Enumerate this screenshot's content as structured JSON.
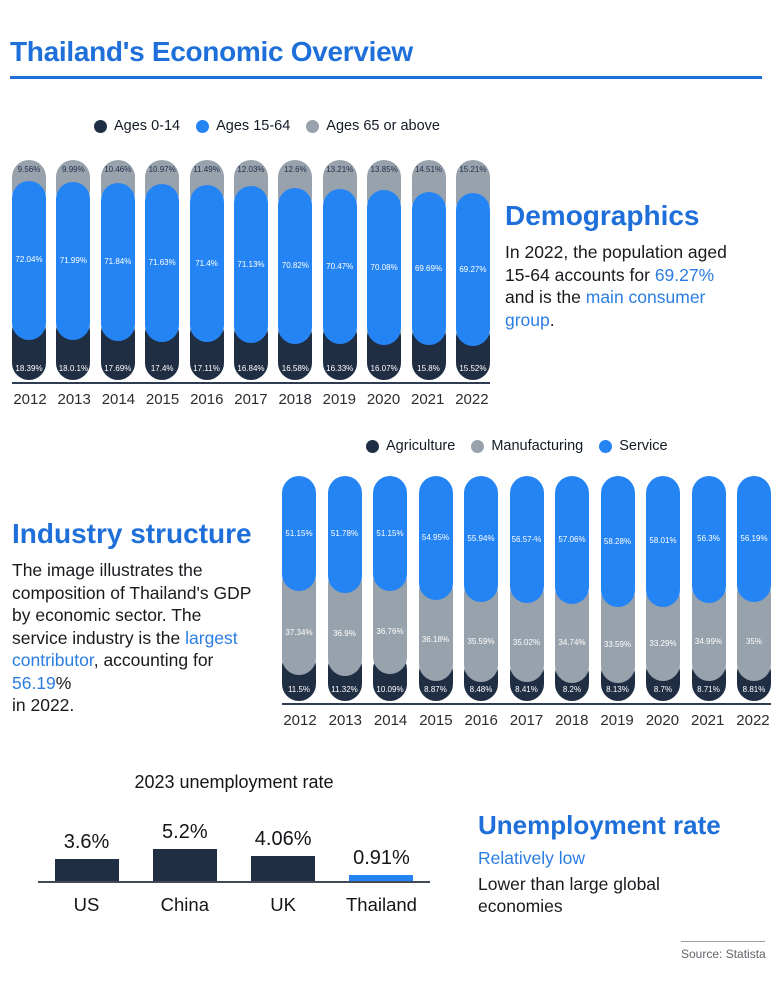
{
  "header": {
    "title": "Thailand's Economic Overview"
  },
  "colors": {
    "accent": "#1e6fd9",
    "blue": "#2584f4",
    "navy": "#202e44",
    "gray": "#98a2ac"
  },
  "sections": {
    "demographics": {
      "heading": "Demographics",
      "legend": [
        {
          "label": "Ages 0-14",
          "color": "navy"
        },
        {
          "label": "Ages 15-64",
          "color": "blue"
        },
        {
          "label": "Ages 65 or above",
          "color": "gray"
        }
      ],
      "para": {
        "p1": "In 2022, the population aged 15-64 accounts for ",
        "p2": "69.27%",
        "p3": " and is the ",
        "p4": "main consumer group",
        "p5": "."
      }
    },
    "industry": {
      "heading": "Industry structure",
      "legend": [
        {
          "label": "Agriculture",
          "color": "navy"
        },
        {
          "label": "Manufacturing",
          "color": "gray"
        },
        {
          "label": "Service",
          "color": "blue"
        }
      ],
      "para": {
        "p1": "The image illustrates the composition of Thailand's GDP by economic sector. The service industry is the ",
        "p2": "largest contributor",
        "p3": ", accounting for ",
        "p4": "56.19",
        "p5": "%",
        "p6": "in 2022."
      }
    },
    "unemployment": {
      "heading": "Unemployment rate",
      "sub": "Relatively low",
      "desc": "Lower than large global economies"
    }
  },
  "footer": {
    "source": "Source: Statista"
  },
  "chart_data": [
    {
      "id": "demographics",
      "type": "stacked-bar",
      "title": "",
      "categories": [
        "2012",
        "2013",
        "2014",
        "2015",
        "2016",
        "2017",
        "2018",
        "2019",
        "2020",
        "2021",
        "2022"
      ],
      "series": [
        {
          "name": "Ages 65 or above",
          "slot": "top",
          "color": "gray",
          "z": 1,
          "label_dark": true,
          "values": [
            9.56,
            9.99,
            10.46,
            10.97,
            11.49,
            12.03,
            12.6,
            13.21,
            13.85,
            14.51,
            15.21
          ],
          "labels": [
            "9.56%",
            "9.99%",
            "10.46%",
            "10.97%",
            "11.49%",
            "12.03%",
            "12.6%",
            "13.21%",
            "13.85%",
            "14.51%",
            "15.21%"
          ]
        },
        {
          "name": "Ages 15-64",
          "slot": "middle",
          "color": "blue",
          "z": 3,
          "label_dark": false,
          "values": [
            72.04,
            71.99,
            71.84,
            71.63,
            71.4,
            71.13,
            70.82,
            70.47,
            70.08,
            69.69,
            69.27
          ],
          "labels": [
            "72.04%",
            "71.99%",
            "71.84%",
            "71.63%",
            "71.4%",
            "71.13%",
            "70.82%",
            "70.47%",
            "70.08%",
            "69.69%",
            "69.27%"
          ]
        },
        {
          "name": "Ages 0-14",
          "slot": "bottom",
          "color": "navy",
          "z": 1,
          "label_dark": false,
          "values": [
            18.39,
            18.01,
            17.69,
            17.4,
            17.11,
            16.84,
            16.58,
            16.33,
            16.07,
            15.8,
            15.52
          ],
          "labels": [
            "18.39%",
            "18.0.1%",
            "17.69%",
            "17.4%",
            "17.11%",
            "16.84%",
            "16.58%",
            "16.33%",
            "16.07%",
            "15.8%",
            "15.52%"
          ]
        }
      ],
      "legend_position": "top",
      "grid": false
    },
    {
      "id": "industry",
      "type": "stacked-bar",
      "title": "",
      "categories": [
        "2012",
        "2013",
        "2014",
        "2015",
        "2016",
        "2017",
        "2018",
        "2019",
        "2020",
        "2021",
        "2022"
      ],
      "series": [
        {
          "name": "Service",
          "slot": "top",
          "color": "blue",
          "z": 3,
          "label_dark": false,
          "values": [
            51.15,
            51.78,
            51.15,
            54.95,
            55.94,
            56.57,
            57.06,
            58.28,
            58.01,
            56.3,
            56.19
          ],
          "labels": [
            "51.15%",
            "51.78%",
            "51.15%",
            "54.95%",
            "55.94%",
            "56.57-%",
            "57.06%",
            "58.28%",
            "58.01%",
            "56.3%",
            "56.19%"
          ]
        },
        {
          "name": "Manufacturing",
          "slot": "middle",
          "color": "gray",
          "z": 2,
          "label_dark": false,
          "values": [
            37.34,
            36.9,
            36.76,
            36.18,
            35.59,
            35.02,
            34.74,
            33.59,
            33.29,
            34.99,
            35
          ],
          "labels": [
            "37.34%",
            "36.9%",
            "36.76%",
            "36.18%",
            "35.59%",
            "35.02%",
            "34.74%",
            "33.59%",
            "33.29%",
            "34.99%",
            "35%"
          ]
        },
        {
          "name": "Agriculture",
          "slot": "bottom",
          "color": "navy",
          "z": 1,
          "label_dark": false,
          "values": [
            11.5,
            11.32,
            10.09,
            8.87,
            8.48,
            8.41,
            8.2,
            8.13,
            8.7,
            8.71,
            8.81
          ],
          "labels": [
            "11.5%",
            "11.32%",
            "10.09%",
            "8.87%",
            "8.48%",
            "8.41%",
            "8.2%",
            "8.13%",
            "8.7%",
            "8.71%",
            "8.81%"
          ]
        }
      ],
      "legend_position": "top",
      "grid": false
    },
    {
      "id": "unemployment",
      "type": "bar",
      "title": "2023 unemployment rate",
      "categories": [
        "US",
        "China",
        "UK",
        "Thailand"
      ],
      "values": [
        3.6,
        5.2,
        4.06,
        0.91
      ],
      "labels": [
        "3.6%",
        "5.2%",
        "4.06%",
        "0.91%"
      ],
      "bar_colors": [
        "navy",
        "navy",
        "navy",
        "blue"
      ],
      "xlabel": "",
      "ylabel": "",
      "ylim": [
        0,
        6
      ],
      "grid": false
    }
  ]
}
